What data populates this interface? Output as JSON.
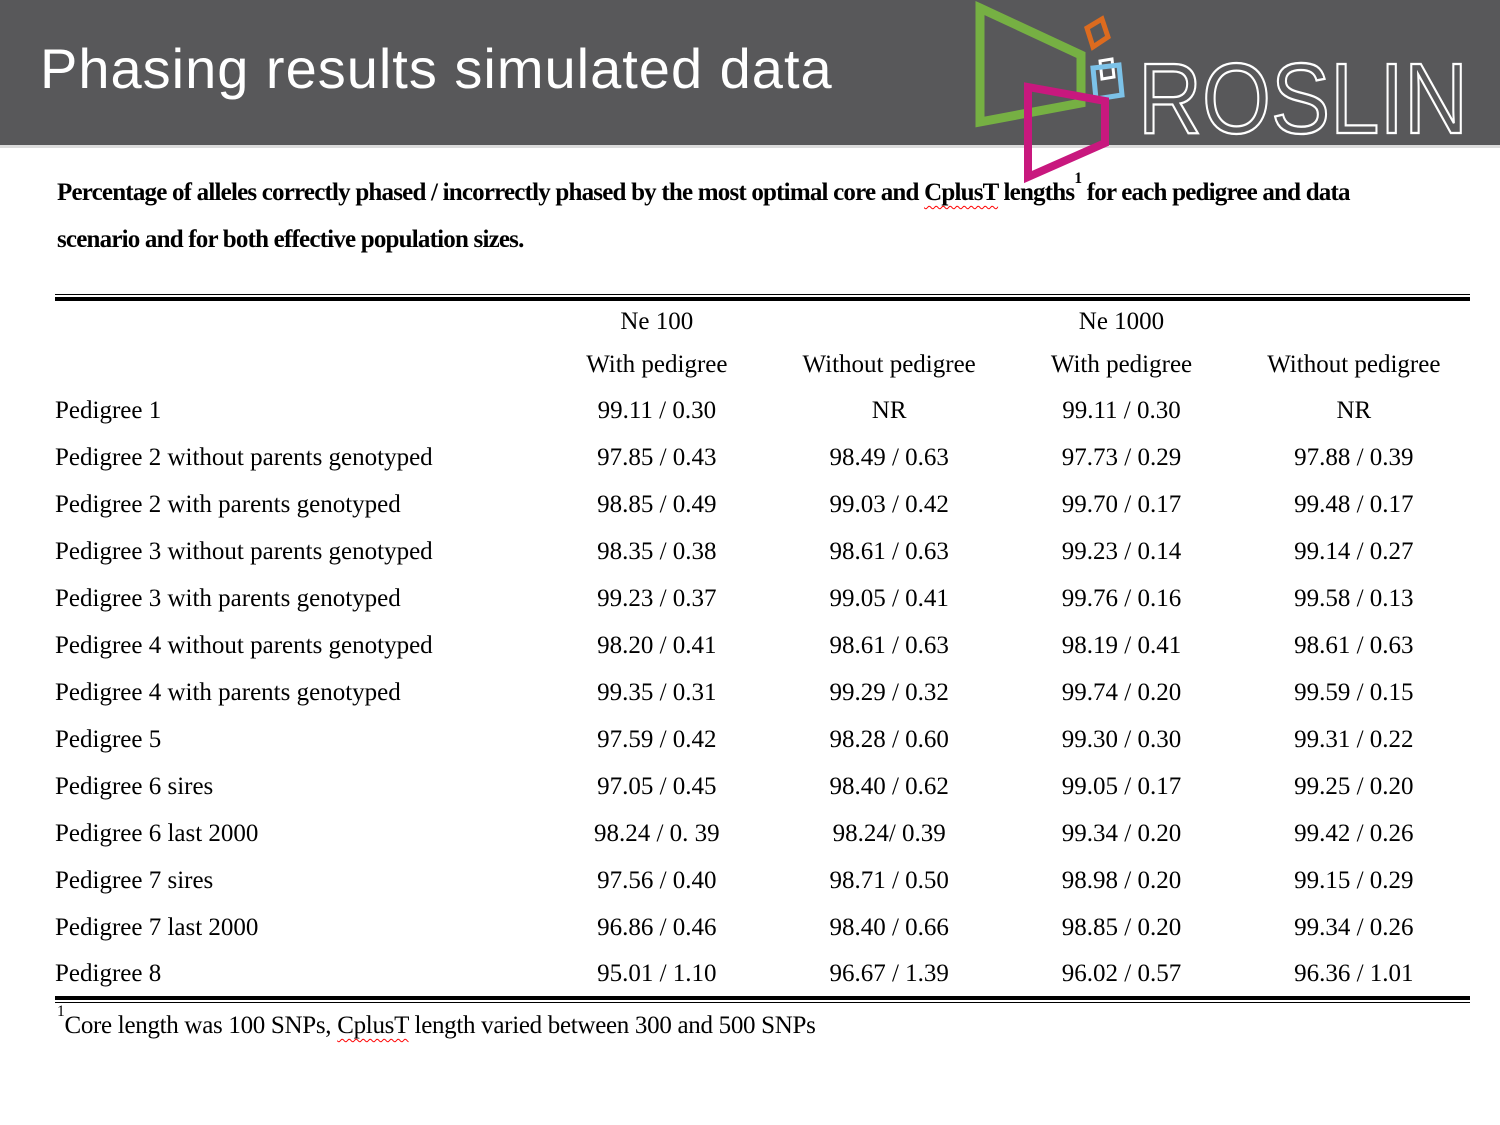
{
  "colors": {
    "header_bar": "#58585a",
    "logo_green": "#76b043",
    "logo_orange": "#dc6b1f",
    "logo_blue": "#7cc2e8",
    "logo_pink": "#c8187e",
    "spellcheck": "#ff0000",
    "text": "#000000"
  },
  "header": {
    "title": "Phasing results simulated data",
    "logo": {
      "text": "ROSLIN"
    }
  },
  "description": {
    "part1": "Percentage of alleles correctly phased / incorrectly phased by the most optimal core and ",
    "cplust": "CplusT",
    "part2": " lengths",
    "superscript": "1",
    "part3": " for each pedigree and data",
    "line2": "scenario and for both effective population sizes."
  },
  "table": {
    "group_headers": {
      "ne100": "Ne 100",
      "ne1000": "Ne 1000"
    },
    "column_headers": [
      "With pedigree",
      "Without pedigree",
      "With pedigree",
      "Without pedigree"
    ],
    "rows": [
      {
        "label": "Pedigree 1",
        "values": [
          "99.11 / 0.30",
          "NR",
          "99.11 / 0.30",
          "NR"
        ]
      },
      {
        "label": "Pedigree 2 without parents genotyped",
        "values": [
          "97.85 / 0.43",
          "98.49 / 0.63",
          "97.73 / 0.29",
          "97.88 / 0.39"
        ]
      },
      {
        "label": "Pedigree 2 with parents genotyped",
        "values": [
          "98.85 / 0.49",
          "99.03 / 0.42",
          "99.70 / 0.17",
          "99.48 / 0.17"
        ]
      },
      {
        "label": "Pedigree 3 without parents genotyped",
        "values": [
          "98.35 / 0.38",
          "98.61 / 0.63",
          "99.23 / 0.14",
          "99.14 / 0.27"
        ]
      },
      {
        "label": "Pedigree 3 with parents genotyped",
        "values": [
          "99.23 / 0.37",
          "99.05 / 0.41",
          "99.76 / 0.16",
          "99.58 / 0.13"
        ]
      },
      {
        "label": "Pedigree 4 without parents genotyped",
        "values": [
          "98.20 / 0.41",
          "98.61 / 0.63",
          "98.19 / 0.41",
          "98.61 / 0.63"
        ]
      },
      {
        "label": "Pedigree 4 with parents genotyped",
        "values": [
          "99.35 / 0.31",
          "99.29 / 0.32",
          "99.74 / 0.20",
          "99.59 / 0.15"
        ]
      },
      {
        "label": "Pedigree 5",
        "values": [
          "97.59 / 0.42",
          "98.28 / 0.60",
          "99.30 / 0.30",
          "99.31 / 0.22"
        ]
      },
      {
        "label": "Pedigree 6 sires",
        "values": [
          "97.05 / 0.45",
          "98.40 / 0.62",
          "99.05 / 0.17",
          "99.25 / 0.20"
        ]
      },
      {
        "label": "Pedigree 6 last 2000",
        "values": [
          "98.24 / 0. 39",
          "98.24/ 0.39",
          "99.34 / 0.20",
          "99.42 / 0.26"
        ]
      },
      {
        "label": "Pedigree 7 sires",
        "values": [
          "97.56 / 0.40",
          "98.71 / 0.50",
          "98.98 / 0.20",
          "99.15 / 0.29"
        ]
      },
      {
        "label": "Pedigree 7 last 2000",
        "values": [
          "96.86 / 0.46",
          "98.40 / 0.66",
          "98.85 / 0.20",
          "99.34 / 0.26"
        ]
      },
      {
        "label": "Pedigree 8",
        "values": [
          "95.01 / 1.10",
          "96.67 / 1.39",
          "96.02 / 0.57",
          "96.36 / 1.01"
        ]
      }
    ]
  },
  "footnote": {
    "superscript": "1",
    "part1": "Core length was 100 SNPs, ",
    "cplust": "CplusT",
    "part2": " length varied between 300 and 500 SNPs"
  }
}
